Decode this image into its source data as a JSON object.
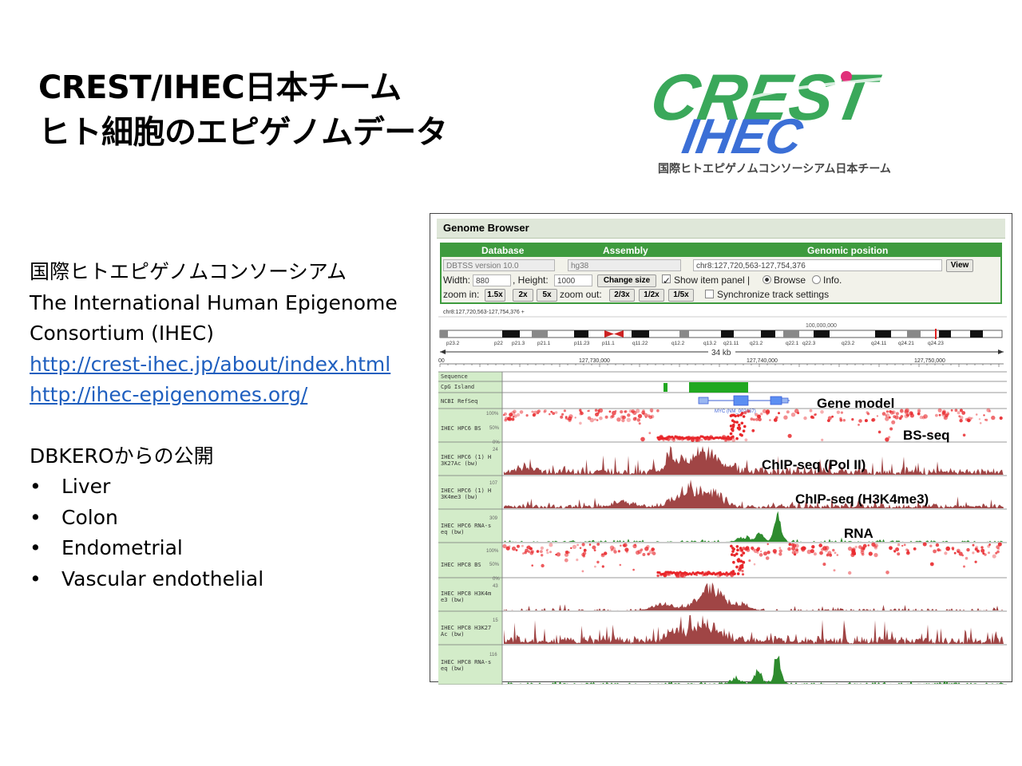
{
  "slide": {
    "title_line1": "CREST/IHEC日本チーム",
    "title_line2": "ヒト細胞のエピゲノムデータ"
  },
  "logo": {
    "crest": "CREST",
    "ihec": "IHEC",
    "subtitle": "国際ヒトエピゲノムコンソーシアム日本チーム",
    "colors": {
      "crest": "#3aa85a",
      "ihec": "#3b6fd6",
      "dot": "#e0307a"
    }
  },
  "info": {
    "consortium_jp": "国際ヒトエピゲノムコンソーシアム",
    "consortium_en_1": "The International Human Epigenome",
    "consortium_en_2": "Consortium (IHEC)",
    "link1": "http://crest-ihec.jp/about/index.html",
    "link2": "http://ihec-epigenomes.org/",
    "release_heading": "DBKEROからの公開",
    "bullet": "•",
    "tissues": [
      "Liver",
      "Colon",
      "Endometrial",
      "Vascular endothelial"
    ]
  },
  "browser": {
    "title": "Genome Browser",
    "col_database": "Database",
    "col_assembly": "Assembly",
    "col_position": "Genomic position",
    "database_value": "DBTSS version 10.0",
    "assembly_value": "hg38",
    "position_value": "chr8:127,720,563-127,754,376",
    "view_label": "View",
    "width_label": "Width:",
    "width_value": "880",
    "height_label": ", Height:",
    "height_value": "1000",
    "change_size_label": "Change size",
    "show_item_panel": "Show item panel |",
    "browse_label": "Browse",
    "info_label": "Info.",
    "zoom_in_label": "zoom in:",
    "zoom_in_buttons": [
      "1.5x",
      "2x",
      "5x"
    ],
    "zoom_out_label": "zoom out:",
    "zoom_out_buttons": [
      "2/3x",
      "1/2x",
      "1/5x"
    ],
    "sync_label": "Synchronize track settings",
    "region_label": "chr8:127,720,563-127,754,376 +",
    "ideogram_marker": "100,000,000",
    "bands": [
      "p23.2",
      "p22",
      "p21.3",
      "p21.1",
      "p11.23",
      "p11.1",
      "q11.22",
      "q12.2",
      "q13.2",
      "q21.11",
      "q21.2",
      "q22.1",
      "q22.3",
      "q23.2",
      "q24.11",
      "q24.21",
      "q24.23"
    ],
    "span_label": "34 kb",
    "ruler_ticks": [
      "127,730,000",
      "127,740,000",
      "127,750,000"
    ],
    "ruler_start": "00",
    "tracks": {
      "sequence": "Sequence",
      "cpg": "CpG Island",
      "refseq": "NCBI RefSeq",
      "gene_name": "MYC (NM_002467)",
      "bs6": "IHEC HPC6 BS",
      "h3k27_6": [
        "IHEC HPC6 (1) H",
        "3K27Ac (bw)"
      ],
      "h3k4_6": [
        "IHEC HPC6 (1) H",
        "3K4me3 (bw)"
      ],
      "rna6": [
        "IHEC HPC6 RNA-s",
        "eq (bw)"
      ],
      "bs8": "IHEC HPC8 BS",
      "h3k4_8": [
        "IHEC HPC8 H3K4m",
        "e3 (bw)"
      ],
      "h3k27_8": [
        "IHEC HPC8 H3K27",
        "Ac (bw)"
      ],
      "rna8": [
        "IHEC HPC8 RNA-s",
        "eq (bw)"
      ]
    },
    "scales": {
      "pct_100": "100%",
      "pct_50": "50%",
      "pct_0": "0%",
      "s1": "24",
      "s2": "107",
      "s3": "309",
      "s4": "43",
      "s5": "15",
      "s6": "116"
    },
    "annotations": {
      "gene_model": "Gene model",
      "bs_seq": "BS-seq",
      "chip_pol2": "ChIP-seq (Pol II)",
      "chip_h3k4": "ChIP-seq (H3K4me3)",
      "rna": "RNA"
    },
    "colors": {
      "green": "#3e9b3e",
      "signal": "#a04545",
      "rna": "#2e8b2e",
      "methyl": "#e8262a"
    }
  }
}
